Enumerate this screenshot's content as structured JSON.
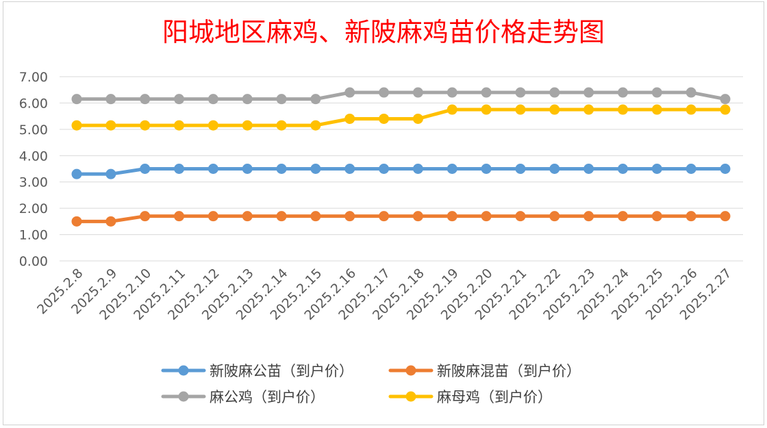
{
  "chart_data": {
    "type": "line",
    "title": "阳城地区麻鸡、新陂麻鸡苗价格走势图",
    "categories": [
      "2025.2.8",
      "2025.2.9",
      "2025.2.10",
      "2025.2.11",
      "2025.2.12",
      "2025.2.13",
      "2025.2.14",
      "2025.2.15",
      "2025.2.16",
      "2025.2.17",
      "2025.2.18",
      "2025.2.19",
      "2025.2.20",
      "2025.2.21",
      "2025.2.22",
      "2025.2.23",
      "2025.2.24",
      "2025.2.25",
      "2025.2.26",
      "2025.2.27"
    ],
    "y_ticks": [
      "0.00",
      "1.00",
      "2.00",
      "3.00",
      "4.00",
      "5.00",
      "6.00",
      "7.00"
    ],
    "ylim": [
      0,
      7
    ],
    "grid": true,
    "legend_position": "bottom",
    "series": [
      {
        "name": "新陂麻公苗（到户价）",
        "color": "#5b9bd5",
        "values": [
          3.3,
          3.3,
          3.5,
          3.5,
          3.5,
          3.5,
          3.5,
          3.5,
          3.5,
          3.5,
          3.5,
          3.5,
          3.5,
          3.5,
          3.5,
          3.5,
          3.5,
          3.5,
          3.5,
          3.5
        ]
      },
      {
        "name": "新陂麻混苗（到户价）",
        "color": "#ed7d31",
        "values": [
          1.5,
          1.5,
          1.7,
          1.7,
          1.7,
          1.7,
          1.7,
          1.7,
          1.7,
          1.7,
          1.7,
          1.7,
          1.7,
          1.7,
          1.7,
          1.7,
          1.7,
          1.7,
          1.7,
          1.7
        ]
      },
      {
        "name": "麻公鸡（到户价）",
        "color": "#a5a5a5",
        "values": [
          6.15,
          6.15,
          6.15,
          6.15,
          6.15,
          6.15,
          6.15,
          6.15,
          6.4,
          6.4,
          6.4,
          6.4,
          6.4,
          6.4,
          6.4,
          6.4,
          6.4,
          6.4,
          6.4,
          6.15
        ]
      },
      {
        "name": "麻母鸡（到户价）",
        "color": "#ffc000",
        "values": [
          5.15,
          5.15,
          5.15,
          5.15,
          5.15,
          5.15,
          5.15,
          5.15,
          5.4,
          5.4,
          5.4,
          5.75,
          5.75,
          5.75,
          5.75,
          5.75,
          5.75,
          5.75,
          5.75,
          5.75
        ]
      }
    ]
  }
}
